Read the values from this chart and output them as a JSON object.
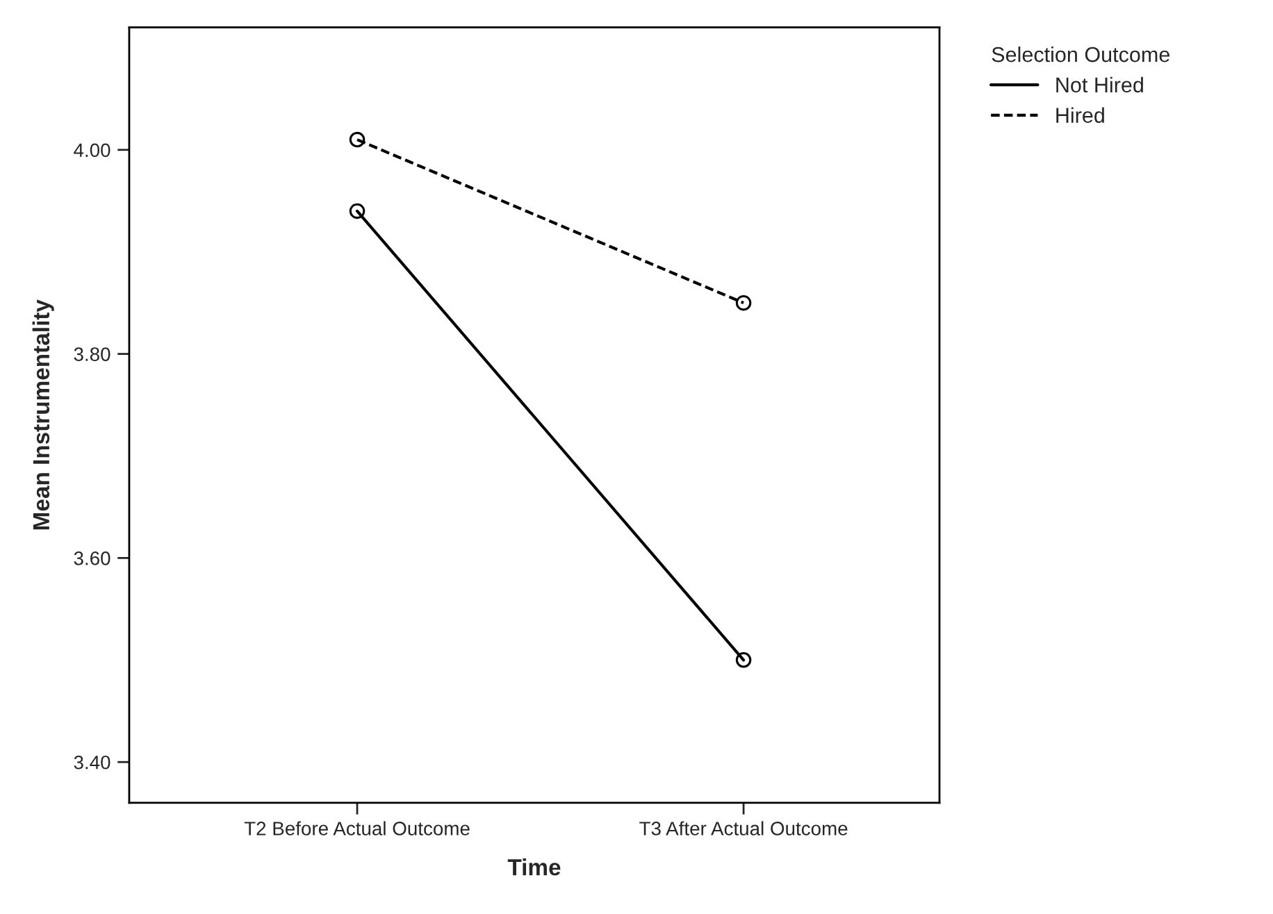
{
  "chart_data": {
    "type": "line",
    "xlabel": "Time",
    "ylabel": "Mean Instrumentality",
    "legend_title": "Selection Outcome",
    "categories": [
      "T2 Before Actual Outcome",
      "T3 After Actual Outcome"
    ],
    "series": [
      {
        "name": "Not Hired",
        "color": "#000000",
        "values": [
          3.94,
          3.5
        ],
        "line_style": "solid"
      },
      {
        "name": "Hired",
        "color": "#000000",
        "values": [
          4.01,
          3.85
        ],
        "line_style": "dashed"
      }
    ],
    "ylim": [
      3.36,
      4.12
    ],
    "yticks": [
      {
        "value": 3.4,
        "label": "3.40"
      },
      {
        "value": 3.6,
        "label": "3.60"
      },
      {
        "value": 3.8,
        "label": "3.80"
      },
      {
        "value": 4.0,
        "label": "4.00"
      }
    ],
    "marker": "circle",
    "grid": false,
    "legend": "top right"
  }
}
